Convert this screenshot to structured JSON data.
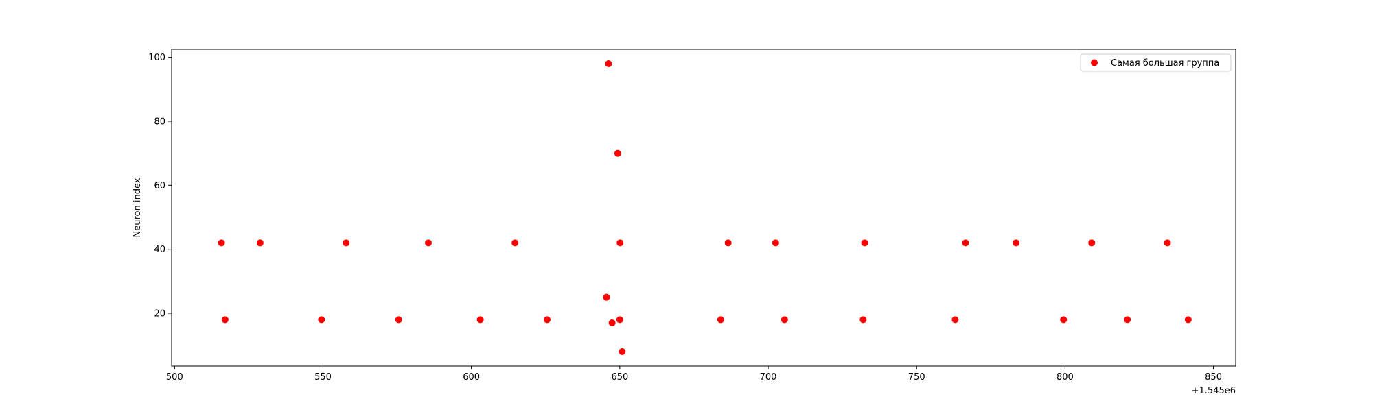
{
  "chart_data": {
    "type": "scatter",
    "title": "",
    "xlabel": "",
    "ylabel": "Neuron index",
    "x_offset_label": "+1.545e6",
    "xlim": [
      499,
      857.5
    ],
    "ylim": [
      3.5,
      102.5
    ],
    "xticks": [
      500,
      550,
      600,
      650,
      700,
      750,
      800,
      850
    ],
    "yticks": [
      20,
      40,
      60,
      80,
      100
    ],
    "grid": false,
    "legend_position": "upper right",
    "series": [
      {
        "name": "Самая большая группа",
        "color": "#ff0000",
        "x": [
          515.8,
          528.8,
          557.8,
          585.5,
          614.7,
          650.1,
          686.5,
          702.5,
          732.5,
          766.5,
          783.5,
          809.0,
          834.5,
          517.0,
          549.5,
          575.5,
          603.0,
          625.5,
          650.0,
          684.0,
          705.5,
          732.0,
          763.0,
          799.5,
          821.0,
          841.5,
          646.2,
          649.3,
          645.5,
          647.4,
          650.8
        ],
        "y": [
          42,
          42,
          42,
          42,
          42,
          42,
          42,
          42,
          42,
          42,
          42,
          42,
          42,
          18,
          18,
          18,
          18,
          18,
          18,
          18,
          18,
          18,
          18,
          18,
          18,
          18,
          98,
          70,
          25,
          17,
          8
        ]
      }
    ]
  }
}
